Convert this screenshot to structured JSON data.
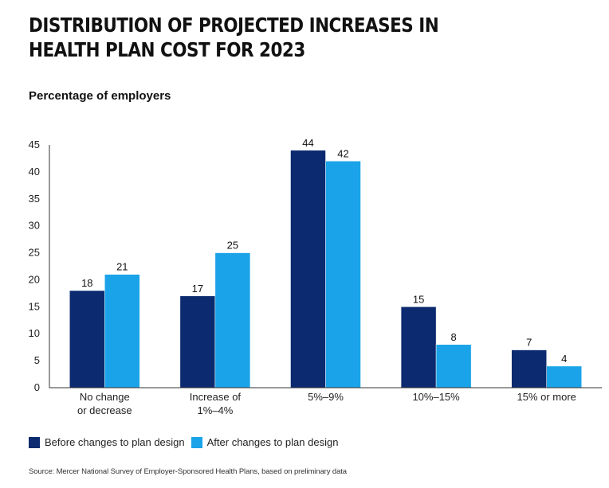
{
  "title": "DISTRIBUTION OF PROJECTED INCREASES IN HEALTH PLAN COST FOR 2023",
  "subtitle": "Percentage of employers",
  "source": "Source: Mercer National Survey of Employer-Sponsored Health Plans, based on preliminary data",
  "colors": {
    "before": "#0b2a6f",
    "after": "#1aa3e8"
  },
  "chart_data": {
    "type": "bar",
    "title": "DISTRIBUTION OF PROJECTED INCREASES IN HEALTH PLAN COST FOR 2023",
    "ylabel": "Percentage of employers",
    "xlabel": "",
    "ylim": [
      0,
      45
    ],
    "yticks": [
      0,
      5,
      10,
      15,
      20,
      25,
      30,
      35,
      40,
      45
    ],
    "grid": false,
    "legend": "bottom-left",
    "categories": [
      [
        "No change",
        "or decrease"
      ],
      [
        "Increase of",
        "1%–4%"
      ],
      [
        "5%–9%"
      ],
      [
        "10%–15%"
      ],
      [
        "15% or more"
      ]
    ],
    "series": [
      {
        "name": "Before changes to plan design",
        "values": [
          18,
          17,
          44,
          15,
          7
        ]
      },
      {
        "name": "After changes to plan design",
        "values": [
          21,
          25,
          42,
          8,
          4
        ]
      }
    ]
  }
}
